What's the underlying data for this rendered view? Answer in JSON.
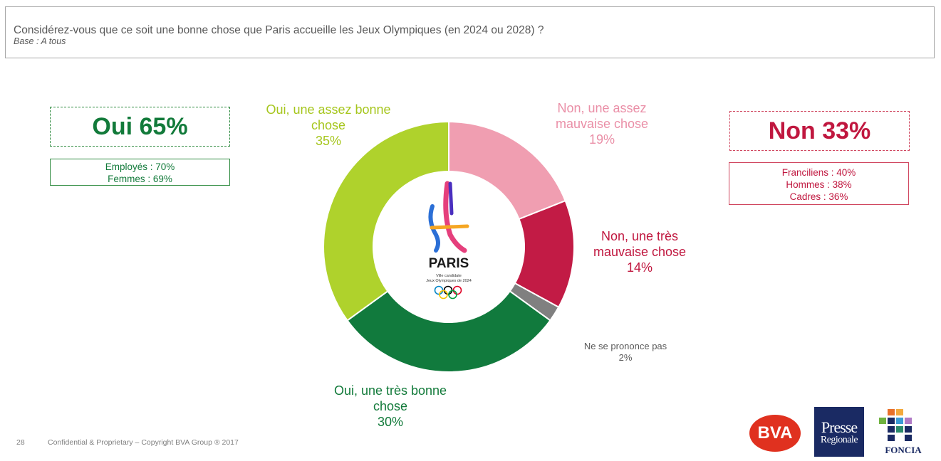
{
  "question": {
    "text": "Considérez-vous que ce soit une bonne chose que Paris accueille les Jeux Olympiques (en 2024 ou 2028) ?",
    "base": "Base : A tous"
  },
  "summary": {
    "oui": {
      "title": "Oui 65%",
      "details": [
        "Employés : 70%",
        "Femmes : 69%"
      ],
      "color": "#127a3a"
    },
    "non": {
      "title": "Non 33%",
      "details": [
        "Franciliens : 40%",
        "Hommes : 38%",
        "Cadres : 36%"
      ],
      "color": "#c0173f"
    }
  },
  "chart_data": {
    "type": "pie",
    "variant": "donut",
    "start": "12 o'clock, clockwise",
    "slices": [
      {
        "label": "Non, une assez mauvaise chose",
        "value": 19,
        "display": "19%",
        "color": "#f09eb1"
      },
      {
        "label": "Non, une très mauvaise chose",
        "value": 14,
        "display": "14%",
        "color": "#c21b45"
      },
      {
        "label": "Ne se prononce pas",
        "value": 2,
        "display": "2%",
        "color": "#808080"
      },
      {
        "label": "Oui, une très bonne chose",
        "value": 30,
        "display": "30%",
        "color": "#117a3d"
      },
      {
        "label": "Oui, une assez bonne chose",
        "value": 35,
        "display": "35%",
        "color": "#afd22c"
      }
    ],
    "center_logo": {
      "name": "paris-2024-logo",
      "title": "PARIS",
      "line1": "Ville candidate",
      "line2": "Jeux Olympiques de 2024"
    }
  },
  "labels": {
    "assez_bonne": {
      "line1": "Oui, une assez bonne",
      "line2": "chose",
      "pct": "35%"
    },
    "assez_mauvaise": {
      "line1": "Non, une assez",
      "line2": "mauvaise chose",
      "pct": "19%"
    },
    "tres_mauvaise": {
      "line1": "Non, une très",
      "line2": "mauvaise chose",
      "pct": "14%"
    },
    "tres_bonne": {
      "line1": "Oui, une très bonne",
      "line2": "chose",
      "pct": "30%"
    },
    "nsp": {
      "line1": "Ne se prononce pas",
      "pct": "2%"
    }
  },
  "footer": {
    "page": "28",
    "copyright": "Confidential & Proprietary – Copyright BVA Group ®  2017"
  },
  "logos": {
    "bva": "BVA",
    "presse_line1": "Presse",
    "presse_line2": "Regionale",
    "foncia": "FONCIA"
  }
}
